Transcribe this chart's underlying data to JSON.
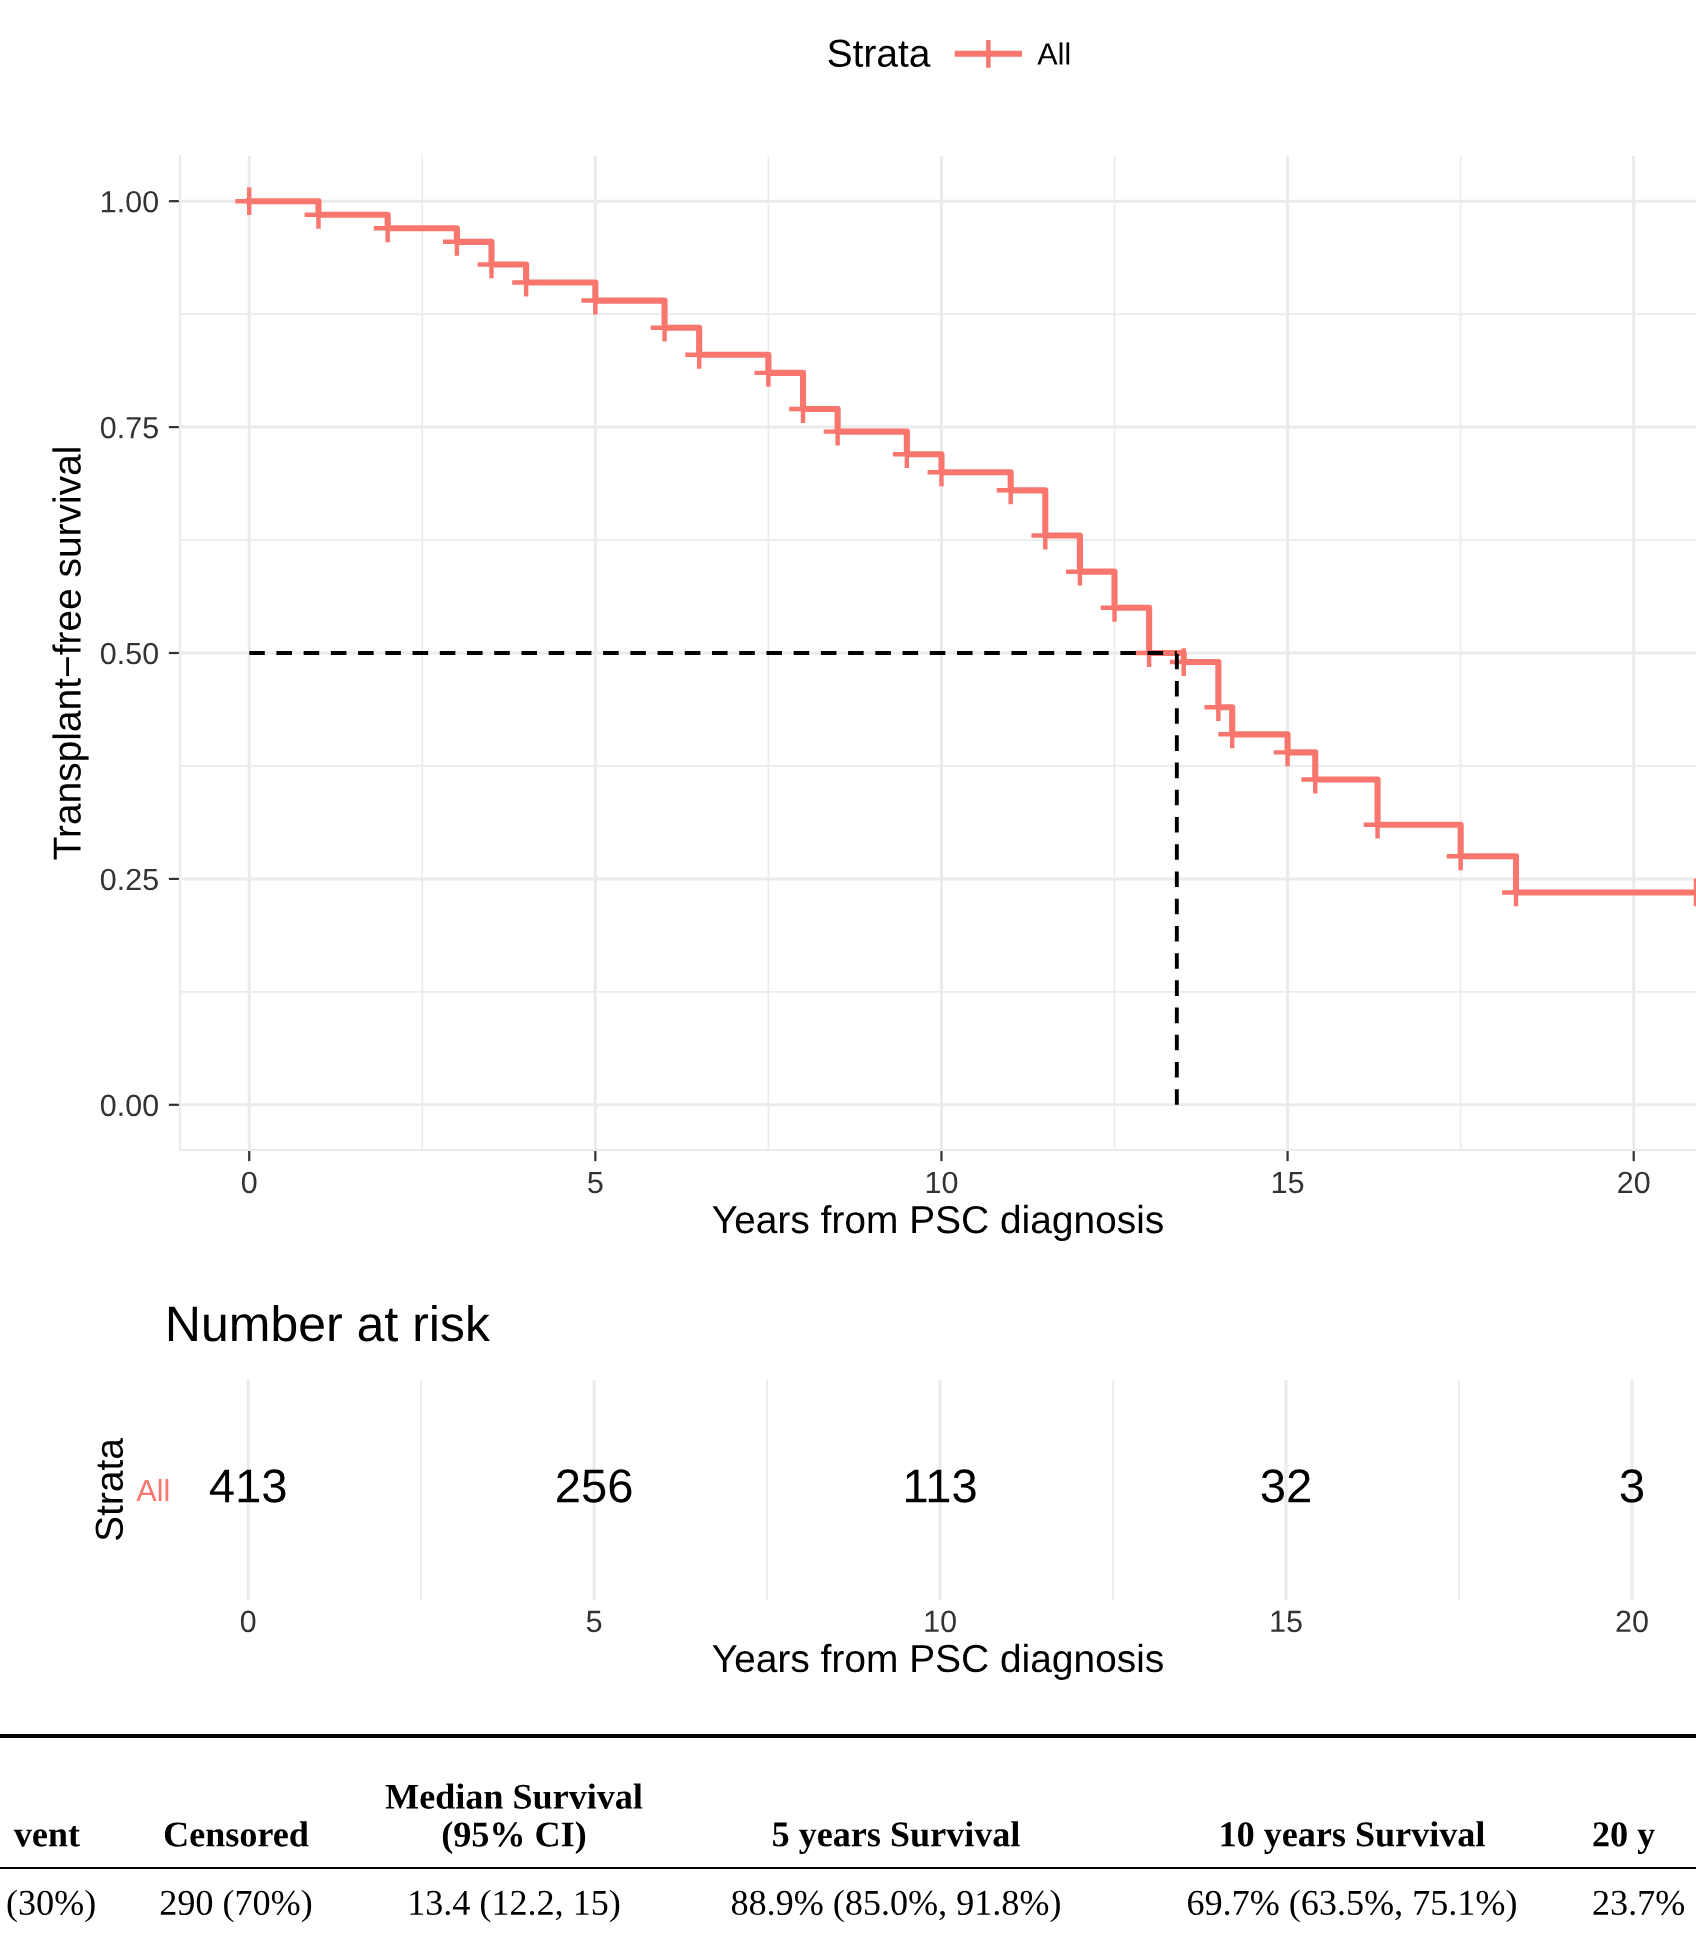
{
  "chart_data": [
    {
      "type": "step",
      "xlabel": "Years from PSC diagnosis",
      "ylabel": "Transplant−free survival",
      "legend_title": "Strata",
      "legend": "top",
      "grid": true,
      "marker": "cross",
      "line_style": "solid",
      "xlim": [
        -1,
        20.9
      ],
      "xticks": [
        0,
        5,
        10,
        15,
        20
      ],
      "ylim": [
        -0.05,
        1.05
      ],
      "yticks": [
        {
          "value": 0,
          "label": "0.00"
        },
        {
          "value": 0.25,
          "label": "0.25"
        },
        {
          "value": 0.5,
          "label": "0.50"
        },
        {
          "value": 0.75,
          "label": "0.75"
        },
        {
          "value": 1,
          "label": "1.00"
        }
      ],
      "x": [
        0,
        1,
        2,
        3,
        3.5,
        4,
        5,
        6,
        6.5,
        7.5,
        8,
        8.5,
        9.5,
        10,
        11,
        11.5,
        12,
        12.5,
        13,
        13.5,
        14,
        14.2,
        15,
        15.4,
        16.3,
        17.5,
        18.3,
        20.9
      ],
      "series": [
        {
          "name": "All",
          "color": "#f8766d",
          "values": [
            1.0,
            0.985,
            0.97,
            0.955,
            0.93,
            0.91,
            0.89,
            0.86,
            0.83,
            0.81,
            0.77,
            0.745,
            0.72,
            0.7,
            0.68,
            0.63,
            0.59,
            0.55,
            0.5,
            0.49,
            0.44,
            0.41,
            0.39,
            0.36,
            0.31,
            0.275,
            0.235,
            0.235
          ]
        }
      ],
      "ref_lines": [
        {
          "axis": "y",
          "value": 0.5,
          "color": "#000000",
          "line_style": "dashed"
        },
        {
          "axis": "x",
          "value": 13.4,
          "color": "#000000",
          "line_style": "dashed"
        }
      ]
    },
    {
      "type": "heatmap",
      "title": "Number at risk",
      "ylabel": "Strata",
      "xlabel": "Years from PSC diagnosis",
      "grid": "x",
      "data_labels": true,
      "categories": [
        "0",
        "5",
        "10",
        "15",
        "20"
      ],
      "y_categories": [
        "All"
      ],
      "cells": [
        [
          413,
          256,
          113,
          32,
          3
        ]
      ]
    },
    {
      "type": "other",
      "categories": [
        "vent",
        "Censored",
        "Median Survival\n(95% CI)",
        "5 years Survival",
        "10 years Survival",
        "20 y"
      ],
      "annotations": [
        "(30%)",
        "290 (70%)",
        "13.4 (12.2, 15)",
        "88.9% (85.0%, 91.8%)",
        "69.7% (63.5%, 75.1%)",
        "23.7%"
      ]
    }
  ]
}
